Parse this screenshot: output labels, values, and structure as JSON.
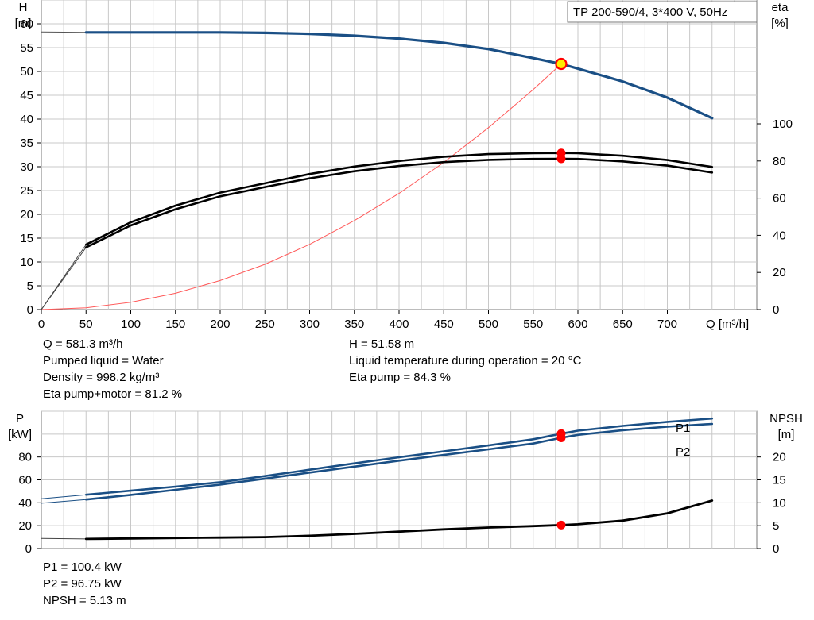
{
  "chart_data": [
    {
      "type": "line",
      "title": "TP 200-590/4, 3*400 V, 50Hz",
      "xlabel": "Q [m³/h]",
      "ylabel_left": [
        "H",
        "[m]"
      ],
      "ylabel_right": [
        "eta",
        "[%]"
      ],
      "xlim": [
        0,
        800
      ],
      "ylim_left": [
        0,
        65
      ],
      "ylim_right": [
        0,
        100
      ],
      "x_ticks": [
        "0",
        "50",
        "100",
        "150",
        "200",
        "250",
        "300",
        "350",
        "400",
        "450",
        "500",
        "550",
        "600",
        "650",
        "700"
      ],
      "y_ticks_left": [
        "0",
        "5",
        "10",
        "15",
        "20",
        "25",
        "30",
        "35",
        "40",
        "45",
        "50",
        "55",
        "60"
      ],
      "y_ticks_right": [
        "0",
        "20",
        "40",
        "60",
        "80",
        "100"
      ],
      "grid": true,
      "series": {
        "head": {
          "color": "#1a4f85",
          "x": [
            0,
            50,
            100,
            150,
            200,
            250,
            300,
            350,
            400,
            450,
            500,
            550,
            581.3,
            600,
            650,
            700,
            750
          ],
          "y": [
            58.3,
            58.2,
            58.2,
            58.2,
            58.2,
            58.1,
            57.9,
            57.5,
            56.9,
            56.0,
            54.7,
            52.8,
            51.58,
            50.6,
            47.9,
            44.5,
            40.2
          ]
        },
        "system_curve": {
          "color": "#ff5a5a",
          "x": [
            0,
            50,
            100,
            150,
            200,
            250,
            300,
            350,
            400,
            450,
            500,
            550,
            581.3
          ],
          "y": [
            0,
            0.38,
            1.53,
            3.44,
            6.1,
            9.5,
            13.7,
            18.7,
            24.4,
            30.9,
            38.2,
            46.2,
            51.58
          ]
        },
        "eta_pump": {
          "color": "#000000",
          "x": [
            0,
            50,
            100,
            150,
            200,
            250,
            300,
            350,
            400,
            450,
            500,
            550,
            581.3,
            600,
            650,
            700,
            750
          ],
          "y": [
            0,
            35,
            47,
            56,
            63,
            68,
            73,
            77,
            80,
            82.3,
            83.7,
            84.2,
            84.3,
            84.2,
            82.8,
            80.5,
            76.8
          ]
        },
        "eta_pump_motor": {
          "color": "#000000",
          "x": [
            0,
            50,
            100,
            150,
            200,
            250,
            300,
            350,
            400,
            450,
            500,
            550,
            581.3,
            600,
            650,
            700,
            750
          ],
          "y": [
            0,
            33.5,
            45.3,
            54,
            61,
            66,
            70.7,
            74.5,
            77.3,
            79.4,
            80.6,
            81.1,
            81.2,
            81.1,
            79.8,
            77.5,
            73.8
          ]
        }
      },
      "operating_point": {
        "x": 581.3,
        "head": 51.58,
        "eta_pump": 84.3,
        "eta_pump_motor": 81.2,
        "marker_color": "#ff0000",
        "marker_fill": "#ffee00"
      }
    },
    {
      "type": "line",
      "ylabel_left": [
        "P",
        "[kW]"
      ],
      "ylabel_right": [
        "NPSH",
        "[m]"
      ],
      "xlim": [
        0,
        800
      ],
      "ylim_left": [
        0,
        120
      ],
      "ylim_right": [
        0,
        30
      ],
      "y_ticks_left": [
        "0",
        "20",
        "40",
        "60",
        "80"
      ],
      "y_ticks_right": [
        "0",
        "5",
        "10",
        "15",
        "20"
      ],
      "grid": true,
      "series": {
        "P1": {
          "name": "P1",
          "color": "#1a4f85",
          "x": [
            0,
            50,
            100,
            150,
            200,
            250,
            300,
            350,
            400,
            450,
            500,
            550,
            581.3,
            600,
            650,
            700,
            750
          ],
          "y": [
            43.5,
            47,
            50.6,
            54.1,
            58,
            63.3,
            68.9,
            74.4,
            79.8,
            85,
            90.1,
            95.5,
            100.4,
            103,
            107.2,
            110.7,
            113.6
          ]
        },
        "P2": {
          "name": "P2",
          "color": "#1a4f85",
          "x": [
            0,
            50,
            100,
            150,
            200,
            250,
            300,
            350,
            400,
            450,
            500,
            550,
            581.3,
            600,
            650,
            700,
            750
          ],
          "y": [
            39.6,
            42.9,
            46.9,
            51.3,
            55.9,
            61.1,
            66.4,
            71.6,
            76.8,
            81.8,
            86.7,
            91.8,
            96.75,
            99.3,
            103.4,
            106.5,
            108.9
          ]
        },
        "NPSH": {
          "name": "NPSH",
          "color": "#000000",
          "x": [
            0,
            50,
            100,
            150,
            200,
            250,
            300,
            350,
            400,
            450,
            500,
            550,
            581.3,
            600,
            650,
            700,
            750
          ],
          "y": [
            2.2,
            2.1,
            2.2,
            2.3,
            2.4,
            2.5,
            2.8,
            3.2,
            3.7,
            4.2,
            4.6,
            4.9,
            5.13,
            5.3,
            6.1,
            7.7,
            10.5
          ]
        }
      },
      "operating_point": {
        "x": 581.3,
        "P1": 100.4,
        "P2": 96.75,
        "NPSH": 5.13,
        "marker_color": "#ff0000"
      }
    }
  ],
  "info_top_left": [
    "Q = 581.3 m³/h",
    "Pumped liquid = Water",
    "Density = 998.2 kg/m³",
    "Eta pump+motor = 81.2 %"
  ],
  "info_top_right": [
    "H = 51.58 m",
    "Liquid temperature during operation = 20 °C",
    "Eta pump = 84.3 %"
  ],
  "info_bottom": [
    "P1 = 100.4 kW",
    "P2 = 96.75 kW",
    "NPSH = 5.13 m"
  ]
}
